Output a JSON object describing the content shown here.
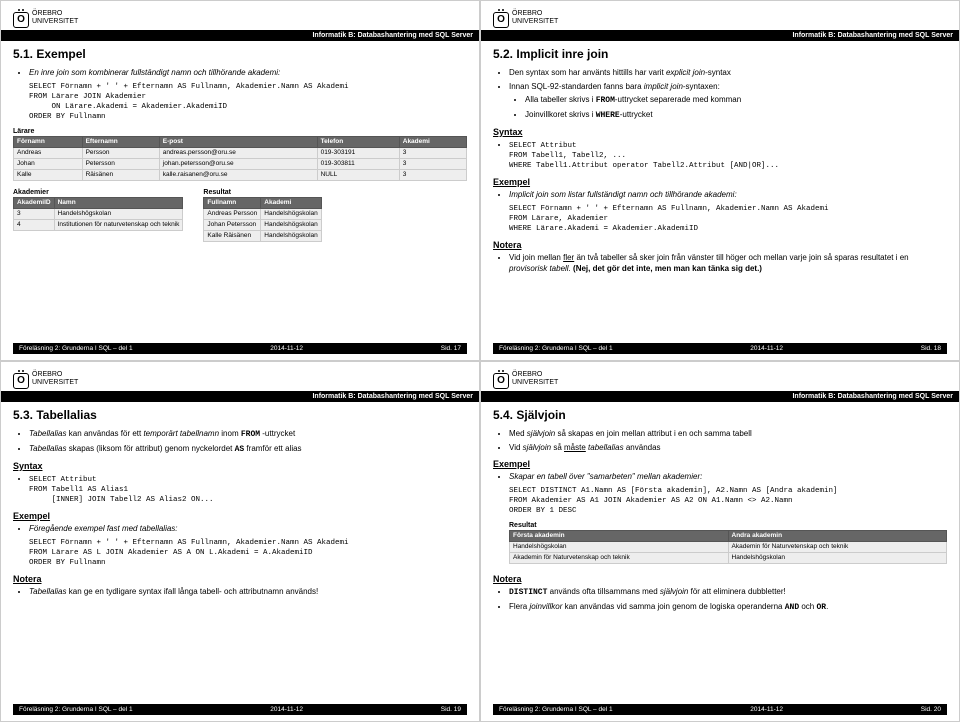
{
  "uni": {
    "name_line1": "ÖREBRO",
    "name_line2": "UNIVERSITET",
    "logo_letter": "O"
  },
  "course": "Informatik B: Databashantering med SQL Server",
  "footer": {
    "lecture": "Föreläsning 2: Grunderna I SQL – del 1",
    "date": "2014-11-12"
  },
  "slide17": {
    "num": "5.1.",
    "title": "Exempel",
    "b1": "En inre join som kombinerar fullständigt namn och tillhörande akademi:",
    "code1": "SELECT Förnamn + ' ' + Efternamn AS Fullnamn, Akademier.Namn AS Akademi\nFROM Lärare JOIN Akademier\n     ON Lärare.Akademi = Akademier.AkademiID\nORDER BY Fullnamn",
    "larare": {
      "label": "Lärare",
      "cols": [
        "Förnamn",
        "Efternamn",
        "E-post",
        "Telefon",
        "Akademi"
      ],
      "rows": [
        [
          "Andreas",
          "Persson",
          "andreas.persson@oru.se",
          "019-303191",
          "3"
        ],
        [
          "Johan",
          "Petersson",
          "johan.petersson@oru.se",
          "019-303811",
          "3"
        ],
        [
          "Kalle",
          "Räisänen",
          "kalle.raisanen@oru.se",
          "NULL",
          "3"
        ]
      ]
    },
    "akademier": {
      "label": "Akademier",
      "cols": [
        "AkademiID",
        "Namn"
      ],
      "rows": [
        [
          "3",
          "Handelshögskolan"
        ],
        [
          "4",
          "Institutionen för naturvetenskap och teknik"
        ]
      ]
    },
    "resultat": {
      "label": "Resultat",
      "cols": [
        "Fullnamn",
        "Akademi"
      ],
      "rows": [
        [
          "Andreas Persson",
          "Handelshögskolan"
        ],
        [
          "Johan Petersson",
          "Handelshögskolan"
        ],
        [
          "Kalle Räisänen",
          "Handelshögskolan"
        ]
      ]
    },
    "page": "Sid. 17"
  },
  "slide18": {
    "num": "5.2.",
    "title": "Implicit inre join",
    "b1_pre": "Den syntax som har använts hittills har varit ",
    "b1_em": "explicit join",
    "b1_post": "-syntax",
    "b2_pre": "Innan SQL-92-standarden fanns bara ",
    "b2_em": "implicit join",
    "b2_post": "-syntaxen:",
    "s1_pre": "Alla tabeller skrivs i ",
    "s1_code": "FROM",
    "s1_post": "-uttrycket separerade med komman",
    "s2_pre": "Joinvillkoret skrivs i ",
    "s2_code": "WHERE",
    "s2_post": "-uttrycket",
    "syntax_label": "Syntax",
    "code1": "SELECT Attribut\nFROM Tabell1, Tabell2, ...\nWHERE Tabell1.Attribut operator Tabell2.Attribut [AND|OR]...",
    "ex_label": "Exempel",
    "b3": "Implicit join som listar fullständigt namn och tillhörande akademi:",
    "code2": "SELECT Förnamn + ' ' + Efternamn AS Fullnamn, Akademier.Namn AS Akademi\nFROM Lärare, Akademier\nWHERE Lärare.Akademi = Akademier.AkademiID",
    "notera_label": "Notera",
    "b4_a": "Vid join mellan ",
    "b4_u": "fler",
    "b4_b": " än två tabeller så sker join från vänster till höger och mellan varje join så sparas resultatet i en ",
    "b4_em": "provisorisk tabell.",
    "b4_c": "  (Nej, det gör det inte, men man kan tänka sig det.)",
    "page": "Sid. 18"
  },
  "slide19": {
    "num": "5.3.",
    "title": "Tabellalias",
    "b1_em": "Tabellalias",
    "b1_post": " kan användas för ett ",
    "b1_em2": "temporärt tabellnamn",
    "b1_post2": " inom ",
    "b1_code": "FROM",
    "b1_post3": " -uttrycket",
    "b2_em": "Tabellalias",
    "b2_post": " skapas (liksom för attribut) genom nyckelordet ",
    "b2_code": "AS",
    "b2_post2": " framför ett alias",
    "syntax_label": "Syntax",
    "code1": "SELECT Attribut\nFROM Tabell1 AS Alias1\n     [INNER] JOIN Tabell2 AS Alias2 ON...",
    "ex_label": "Exempel",
    "b3": "Föregående exempel fast med tabellalias:",
    "code2": "SELECT Förnamn + ' ' + Efternamn AS Fullnamn, Akademier.Namn AS Akademi\nFROM Lärare AS L JOIN Akademier AS A ON L.Akademi = A.AkademiID\nORDER BY Fullnamn",
    "notera_label": "Notera",
    "b4_em": "Tabellalias",
    "b4_post": " kan ge en tydligare syntax ifall långa tabell- och attributnamn används!",
    "page": "Sid. 19"
  },
  "slide20": {
    "num": "5.4.",
    "title": "Självjoin",
    "b1_pre": "Med ",
    "b1_em": "självjoin",
    "b1_post": " så skapas en join mellan attribut i en och samma tabell",
    "b2_pre": "Vid ",
    "b2_em": "självjoin",
    "b2_post": " så ",
    "b2_u": "måste",
    "b2_post2": " ",
    "b2_em2": "tabellalias",
    "b2_post3": " användas",
    "ex_label": "Exempel",
    "b3": "Skapar en tabell över \"samarbeten\" mellan akademier:",
    "code1": "SELECT DISTINCT A1.Namn AS [Första akademin], A2.Namn AS [Andra akademin]\nFROM Akademier AS A1 JOIN Akademier AS A2 ON A1.Namn <> A2.Namn\nORDER BY 1 DESC",
    "resultat": {
      "label": "Resultat",
      "cols": [
        "Första akademin",
        "Andra akademin"
      ],
      "rows": [
        [
          "Handelshögskolan",
          "Akademin för Naturvetenskap och teknik"
        ],
        [
          "Akademin för Naturvetenskap och teknik",
          "Handelshögskolan"
        ]
      ]
    },
    "notera_label": "Notera",
    "b4_code": "DISTINCT",
    "b4_post": " används ofta tillsammans med ",
    "b4_em": "självjoin",
    "b4_post2": " för att eliminera dubbletter!",
    "b5_pre": "Flera ",
    "b5_em": "joinvillkor",
    "b5_post": " kan användas vid samma join genom de logiska operanderna ",
    "b5_c1": "AND",
    "b5_mid": " och ",
    "b5_c2": "OR",
    "b5_end": ".",
    "page": "Sid. 20"
  }
}
